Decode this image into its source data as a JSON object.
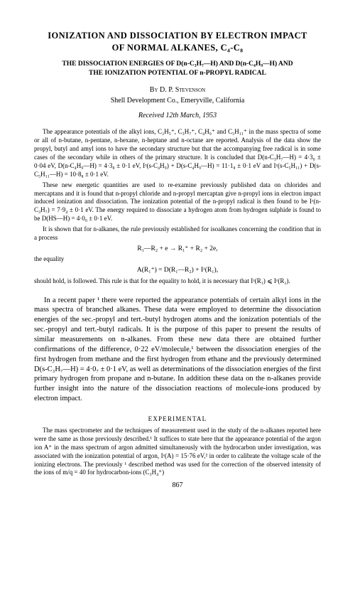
{
  "title_l1": "IONIZATION AND DISSOCIATION BY ELECTRON IMPACT",
  "title_l2": "OF NORMAL ALKANES, C₄-C₈",
  "subtitle_l1": "THE DISSOCIATION ENERGIES OF D(n-C₃H₇—H) AND D(n-C₄H₉—H) AND",
  "subtitle_l2": "THE IONIZATION POTENTIAL OF n-PROPYL RADICAL",
  "by": "By D. P. Stevenson",
  "affil": "Shell Development Co., Emeryville, California",
  "received": "Received 12th March, 1953",
  "abs_p1": "The appearance potentials of the alkyl ions, C₂H₅⁺, C₃H₇⁺, C₄H₉⁺ and C₅H₁₁⁺ in the mass spectra of some or all of n-butane, n-pentane, n-hexane, n-heptane and n-octane are reported. Analysis of the data show the propyl, butyl and amyl ions to have the secondary structure but that the accompanying free radical is in some cases of the secondary while in others of the primary structure. It is concluded that D(n-C₃H₇—H) = 4·3₀ ± 0·04 eV, D(n-C₄H₉—H) = 4·3₈ ± 0·1 eV, Iᶻ(s-C₄H₉) + D(s-C₄H₉—H) = 11·1₈ ± 0·1 eV and Iᶻ(s-C₅H₁₁) + D(s-C₅H₁₁—H) = 10·8₈ ± 0·1 eV.",
  "abs_p2": "These new energetic quantities are used to re-examine previously published data on chlorides and mercaptans and it is found that n-propyl chloride and n-propyl mercaptan give n-propyl ions in electron impact induced ionization and dissociation. The ionization potential of the n-propyl radical is then found to be Iᶻ(n-C₃H₇) = 7·9₄ ± 0·1 eV. The energy required to dissociate a hydrogen atom from hydrogen sulphide is found to be D(HS—H) = 4·0₀ ± 0·1 eV.",
  "abs_p3": "It is shown that for n-alkanes, the rule previously established for isoalkanes concerning the condition that in a process",
  "eq1": "R₁—R₂ + e → R₁⁺ + R₂ + 2e,",
  "abs_p4": "the equality",
  "eq2": "A(R₁⁺) = D(R₁—R₂) + Iᶻ(R₁),",
  "abs_p5": "should hold, is followed. This rule is that for the equality to hold, it is necessary that Iᶻ(R₁) ⩽ Iᶻ(R₂).",
  "body_p1": "In a recent paper ¹ there were reported the appearance potentials of certain alkyl ions in the mass spectra of branched alkanes. These data were employed to determine the dissociation energies of the sec.-propyl and tert.-butyl hydrogen atoms and the ionization potentials of the sec.-propyl and tert.-butyl radicals. It is the purpose of this paper to present the results of similar measurements on n-alkanes. From these new data there are obtained further confirmations of the difference, 0·22 eV/molecule,¹ between the dissociation energies of the first hydrogen from methane and the first hydrogen from ethane and the previously determined D(s-C₃H₇—H) = 4·0₇ ± 0·1 eV, as well as determinations of the dissociation energies of the first primary hydrogen from propane and n-butane. In addition these data on the n-alkanes provide further insight into the nature of the dissociation reactions of molecule-ions produced by electron impact.",
  "section_experimental": "EXPERIMENTAL",
  "exp_p1": "The mass spectrometer and the techniques of measurement used in the study of the n-alkanes reported here were the same as those previously described.¹ It suffices to state here that the appearance potential of the argon ion A⁺ in the mass spectrum of argon admitted simultaneously with the hydrocarbon under investigation, was associated with the ionization potential of argon, Iᶻ(A) = 15·76 eV,² in order to calibrate the voltage scale of the ionizing electrons. The previously ¹ described method was used for the correction of the observed intensity of the ions of m/q = 40 for hydrocarbon-ions (C₃H₄⁺)",
  "pagenum": "867"
}
